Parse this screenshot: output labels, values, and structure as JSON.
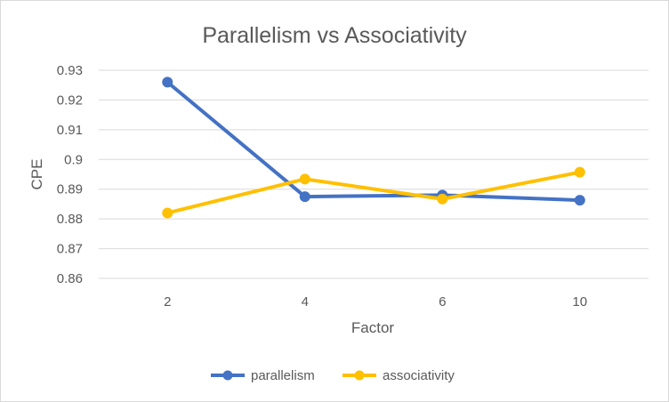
{
  "chart_data": {
    "type": "line",
    "title": "Parallelism vs Associativity",
    "xlabel": "Factor",
    "ylabel": "CPE",
    "categories": [
      "2",
      "4",
      "6",
      "10"
    ],
    "ylim": [
      0.86,
      0.93
    ],
    "yticks": [
      0.86,
      0.87,
      0.88,
      0.89,
      0.9,
      0.91,
      0.92,
      0.93
    ],
    "ytick_labels": [
      "0.86",
      "0.87",
      "0.88",
      "0.89",
      "0.9",
      "0.91",
      "0.92",
      "0.93"
    ],
    "grid": true,
    "legend_position": "bottom",
    "series": [
      {
        "name": "parallelism",
        "color": "#4472C4",
        "values": [
          0.926,
          0.8875,
          0.888,
          0.8863
        ]
      },
      {
        "name": "associativity",
        "color": "#FFC000",
        "values": [
          0.882,
          0.8934,
          0.8867,
          0.8957
        ]
      }
    ]
  }
}
